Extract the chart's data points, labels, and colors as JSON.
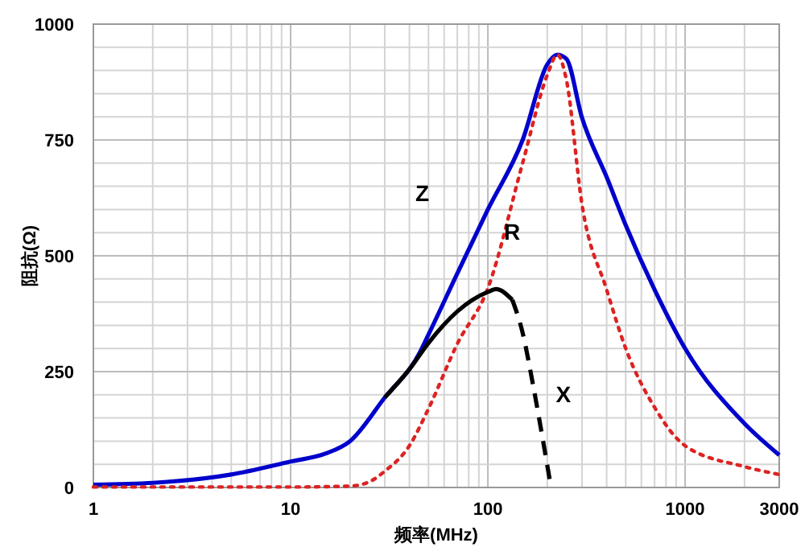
{
  "chart_data": {
    "type": "line",
    "xlabel": "频率(MHz)",
    "ylabel": "阻抗(Ω)",
    "log": "x",
    "xlim": [
      1,
      3000
    ],
    "xticks": [
      1,
      10,
      100,
      1000,
      3000
    ],
    "ylim": [
      0,
      1000
    ],
    "yticks": [
      0,
      250,
      500,
      750,
      1000
    ],
    "grid": true,
    "series": [
      {
        "name": "Z",
        "color": "#0000cc",
        "line_style": "solid",
        "x": [
          1,
          2,
          5,
          10,
          15,
          20,
          30,
          45,
          50,
          70,
          100,
          150,
          200,
          225,
          250,
          300,
          400,
          500,
          700,
          1000,
          2000,
          3000
        ],
        "values": [
          6,
          10,
          28,
          56,
          73,
          100,
          194,
          290,
          330,
          462,
          600,
          750,
          913,
          934,
          925,
          798,
          670,
          566,
          427,
          300,
          138,
          70
        ]
      },
      {
        "name": "R",
        "color": "#dd2222",
        "line_style": "dotted",
        "x": [
          1,
          10,
          20,
          25,
          30,
          40,
          50,
          70,
          100,
          150,
          200,
          225,
          250,
          300,
          400,
          500,
          700,
          1000,
          2000,
          3000
        ],
        "values": [
          1,
          1,
          3,
          12,
          35,
          90,
          170,
          310,
          430,
          700,
          890,
          934,
          880,
          611,
          427,
          300,
          173,
          90,
          45,
          28
        ]
      },
      {
        "color": "#000000",
        "line_style": "solid",
        "x": [
          30,
          40,
          50,
          70,
          100,
          110,
          133
        ],
        "values": [
          194,
          255,
          312,
          380,
          422,
          428,
          405
        ]
      },
      {
        "name": "X",
        "color": "#000000",
        "line_style": "dashed",
        "x": [
          133,
          150,
          170,
          190,
          209
        ],
        "values": [
          405,
          334,
          218,
          103,
          0
        ]
      }
    ]
  }
}
